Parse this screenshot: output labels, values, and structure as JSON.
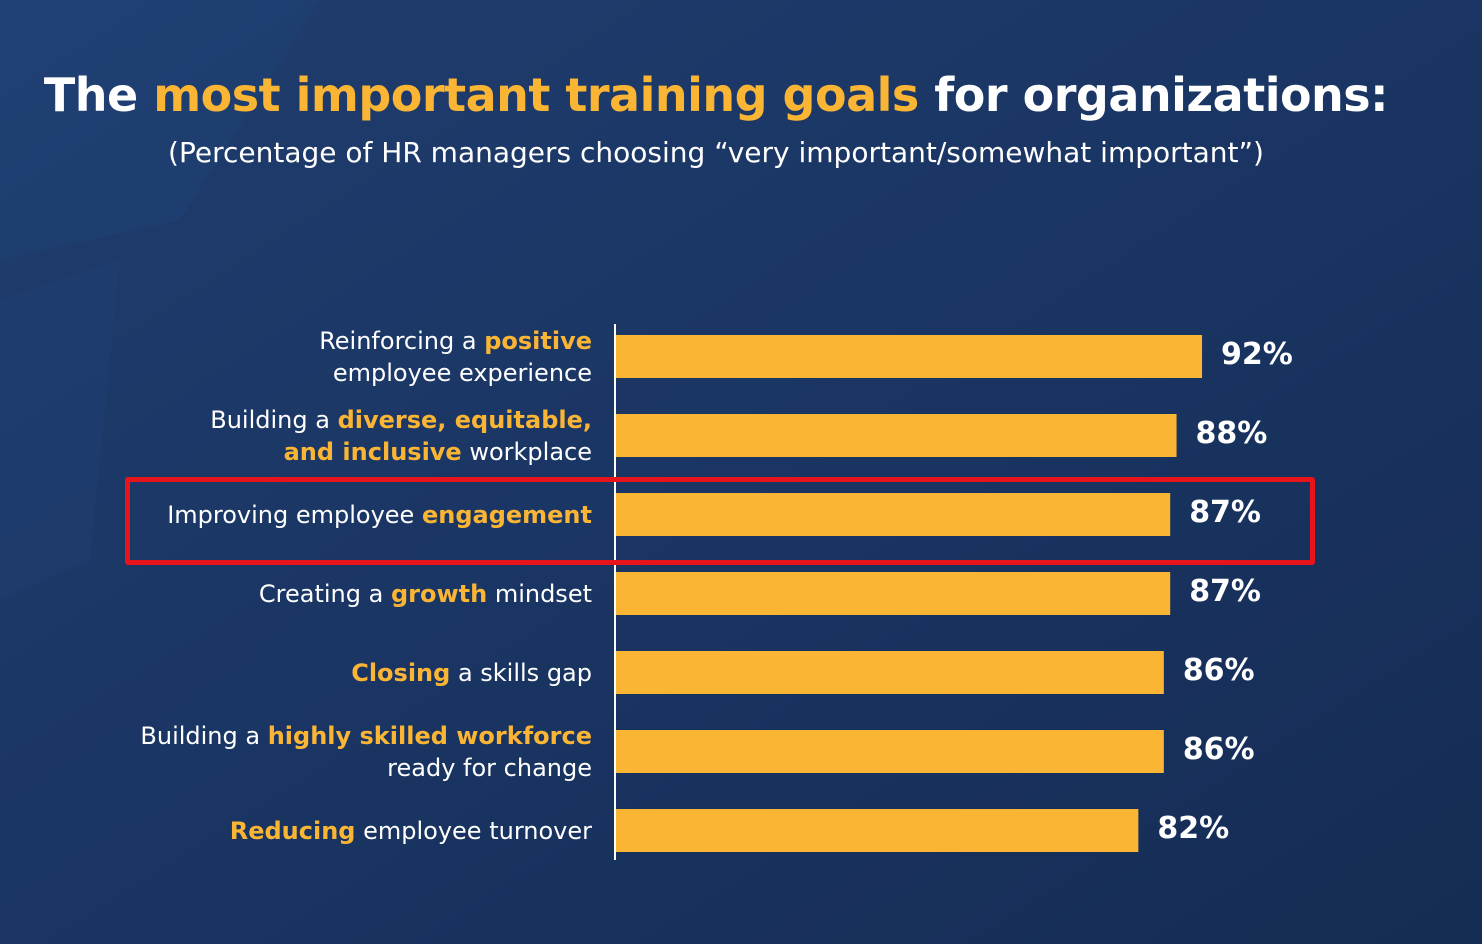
{
  "header": {
    "title_parts": [
      {
        "text": "The ",
        "highlight": false
      },
      {
        "text": "most important training goals",
        "highlight": true
      },
      {
        "text": " for organizations:",
        "highlight": false
      }
    ],
    "subtitle": "(Percentage of HR managers choosing “very important/somewhat important”)"
  },
  "colors": {
    "bar": "#fbb534",
    "highlight_text": "#fbb534",
    "text": "#ffffff",
    "background": "#1a3563",
    "highlight_box": "#e8141b"
  },
  "chart_data": {
    "type": "bar",
    "orientation": "horizontal",
    "title": "The most important training goals for organizations:",
    "subtitle": "(Percentage of HR managers choosing “very important/somewhat important”)",
    "xlim": [
      0,
      100
    ],
    "grid": false,
    "highlighted_category_index": 2,
    "categories": [
      {
        "lines": [
          [
            {
              "text": "Reinforcing a ",
              "highlight": false
            },
            {
              "text": "positive",
              "highlight": true
            }
          ],
          [
            {
              "text": "employee experience",
              "highlight": false
            }
          ]
        ]
      },
      {
        "lines": [
          [
            {
              "text": "Building a ",
              "highlight": false
            },
            {
              "text": "diverse, equitable,",
              "highlight": true
            }
          ],
          [
            {
              "text": "and inclusive",
              "highlight": true
            },
            {
              "text": " workplace",
              "highlight": false
            }
          ]
        ]
      },
      {
        "lines": [
          [
            {
              "text": "Improving employee ",
              "highlight": false
            },
            {
              "text": "engagement",
              "highlight": true
            }
          ]
        ]
      },
      {
        "lines": [
          [
            {
              "text": "Creating a ",
              "highlight": false
            },
            {
              "text": "growth",
              "highlight": true
            },
            {
              "text": " mindset",
              "highlight": false
            }
          ]
        ]
      },
      {
        "lines": [
          [
            {
              "text": "Closing",
              "highlight": true
            },
            {
              "text": " a skills gap",
              "highlight": false
            }
          ]
        ]
      },
      {
        "lines": [
          [
            {
              "text": "Building a ",
              "highlight": false
            },
            {
              "text": "highly skilled workforce",
              "highlight": true
            }
          ],
          [
            {
              "text": "ready for change",
              "highlight": false
            }
          ]
        ]
      },
      {
        "lines": [
          [
            {
              "text": "Reducing",
              "highlight": true
            },
            {
              "text": " employee turnover",
              "highlight": false
            }
          ]
        ]
      }
    ],
    "values": [
      92,
      88,
      87,
      87,
      86,
      86,
      82
    ],
    "value_labels": [
      "92%",
      "88%",
      "87%",
      "87%",
      "86%",
      "86%",
      "82%"
    ]
  }
}
